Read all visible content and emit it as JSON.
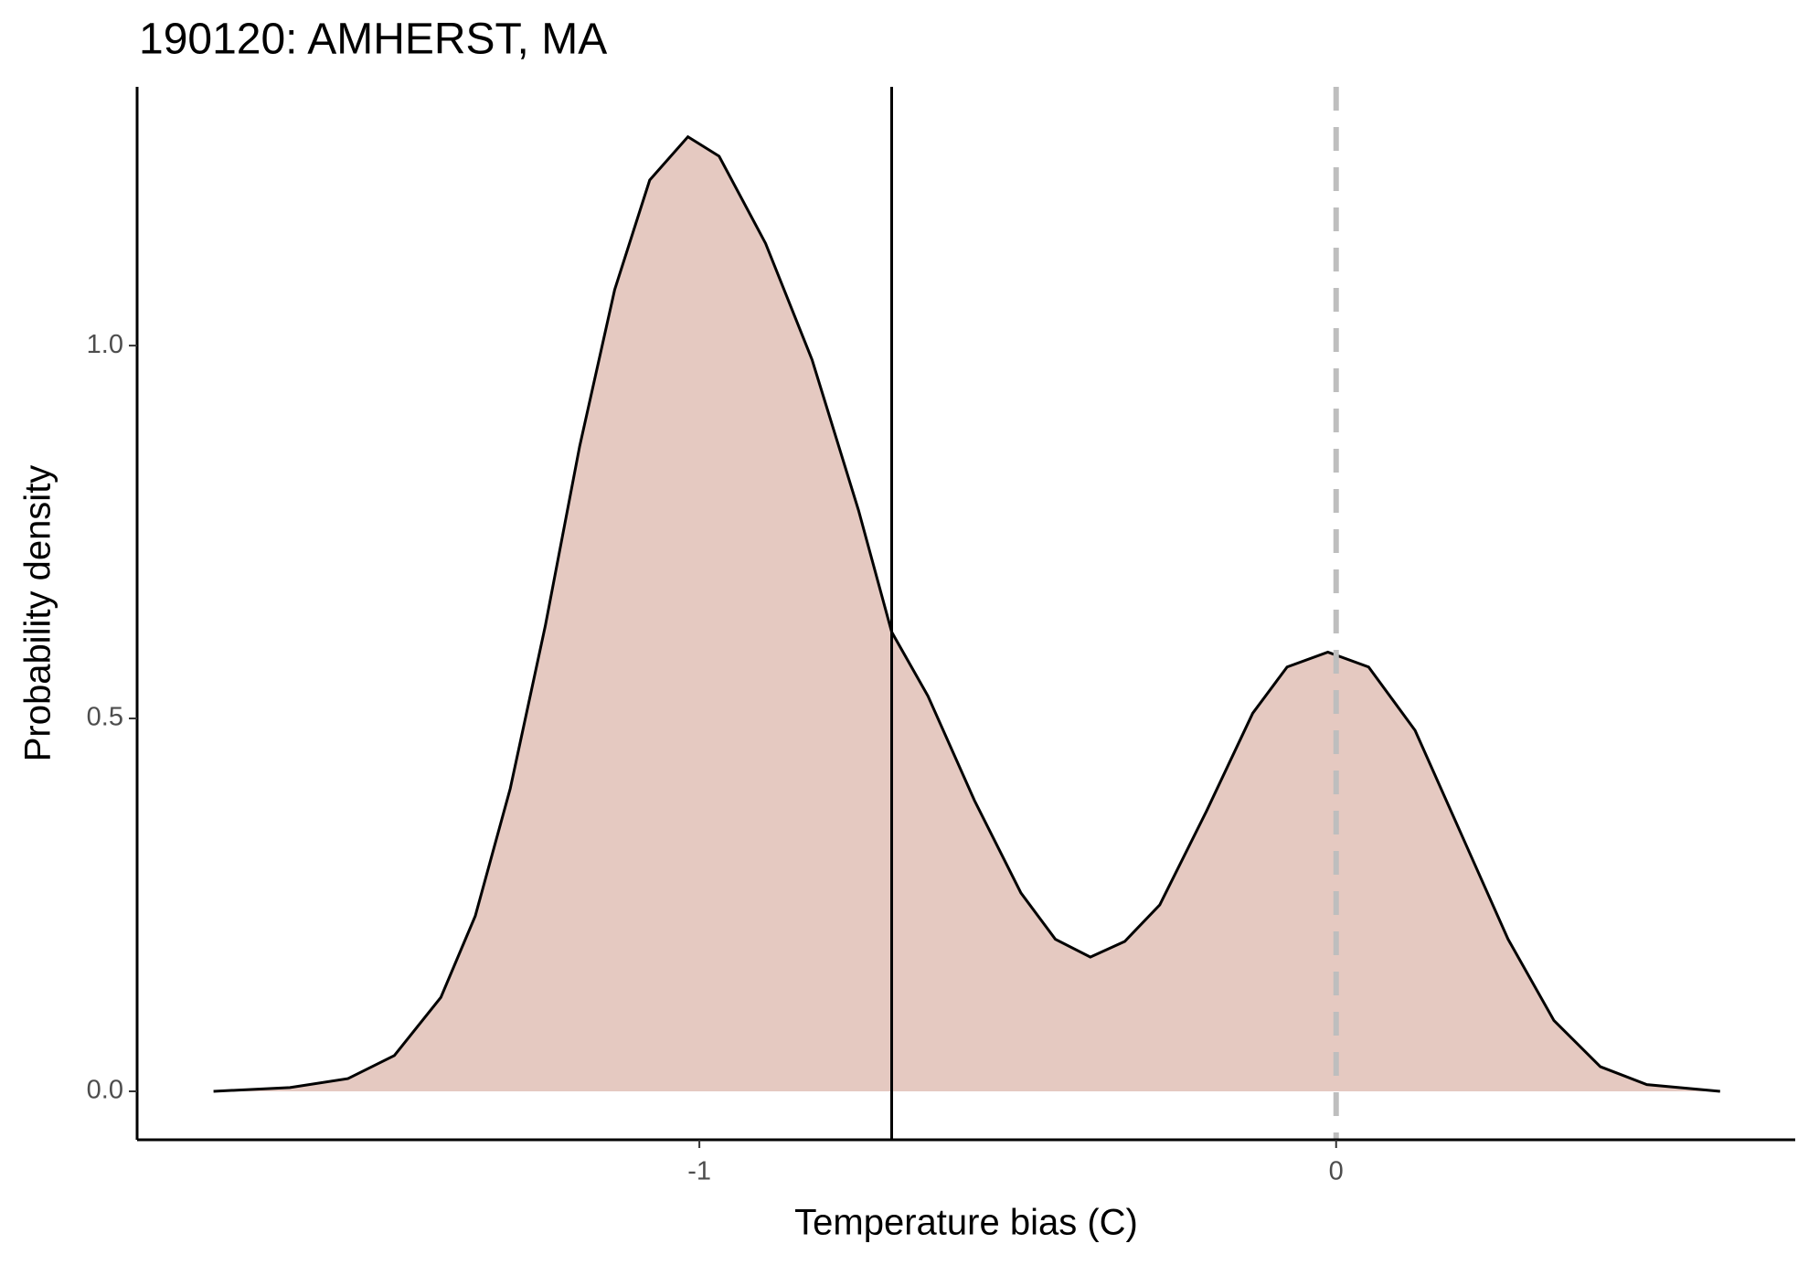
{
  "chart_data": {
    "type": "density",
    "title": "190120: AMHERST, MA",
    "x_label": "Temperature bias (C)",
    "y_label": "Probability density",
    "x": [
      -1.763,
      -1.643,
      -1.552,
      -1.479,
      -1.406,
      -1.352,
      -1.297,
      -1.242,
      -1.188,
      -1.133,
      -1.078,
      -1.018,
      -0.969,
      -0.896,
      -0.823,
      -0.75,
      -0.698,
      -0.641,
      -0.568,
      -0.495,
      -0.441,
      -0.386,
      -0.332,
      -0.277,
      -0.204,
      -0.131,
      -0.077,
      -0.013,
      0.051,
      0.124,
      0.197,
      0.27,
      0.342,
      0.415,
      0.488,
      0.603
    ],
    "values": [
      0,
      0.005,
      0.017,
      0.048,
      0.126,
      0.235,
      0.406,
      0.624,
      0.865,
      1.075,
      1.222,
      1.28,
      1.254,
      1.137,
      0.981,
      0.779,
      0.616,
      0.53,
      0.39,
      0.266,
      0.204,
      0.18,
      0.201,
      0.25,
      0.375,
      0.507,
      0.569,
      0.589,
      0.569,
      0.484,
      0.344,
      0.204,
      0.095,
      0.033,
      0.009,
      0
    ],
    "fill": "#e5c9c1",
    "line_color": "#000000",
    "vlines": [
      {
        "x": -0.698,
        "style": "solid",
        "color": "#000000"
      },
      {
        "x": 0,
        "style": "dashed",
        "color": "#bebebe"
      }
    ],
    "xlim": [
      -1.883,
      0.721
    ],
    "ylim": [
      -0.065,
      1.347
    ],
    "xticks": [
      -1,
      0
    ],
    "yticks": [
      {
        "value": 0,
        "label": "0.0"
      },
      {
        "value": 0.5,
        "label": "0.5"
      },
      {
        "value": 1,
        "label": "1.0"
      }
    ],
    "grid": false
  }
}
